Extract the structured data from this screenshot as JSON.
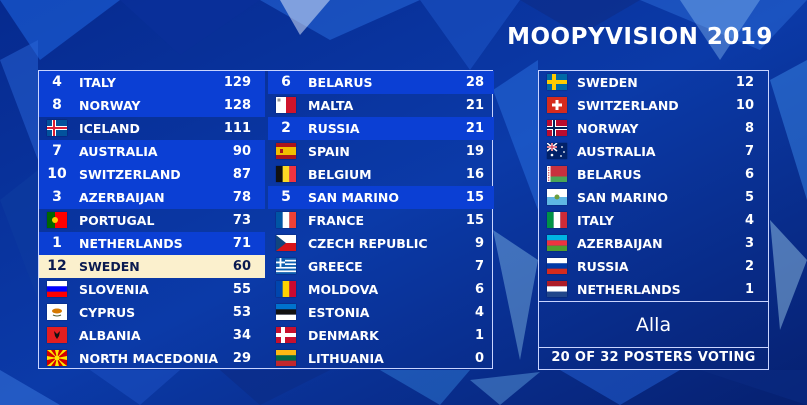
{
  "title": "MOOPYVISION 2019",
  "scoreboard": {
    "left": [
      {
        "country": "ITALY",
        "score": "129",
        "points": "4",
        "flag": "it"
      },
      {
        "country": "NORWAY",
        "score": "128",
        "points": "8",
        "flag": "no"
      },
      {
        "country": "ICELAND",
        "score": "111",
        "points": "",
        "flag": "is"
      },
      {
        "country": "AUSTRALIA",
        "score": "90",
        "points": "7",
        "flag": "au"
      },
      {
        "country": "SWITZERLAND",
        "score": "87",
        "points": "10",
        "flag": "ch"
      },
      {
        "country": "AZERBAIJAN",
        "score": "78",
        "points": "3",
        "flag": "az"
      },
      {
        "country": "PORTUGAL",
        "score": "73",
        "points": "",
        "flag": "pt"
      },
      {
        "country": "NETHERLANDS",
        "score": "71",
        "points": "1",
        "flag": "nl"
      },
      {
        "country": "SWEDEN",
        "score": "60",
        "points": "12",
        "flag": "se"
      },
      {
        "country": "SLOVENIA",
        "score": "55",
        "points": "",
        "flag": "si"
      },
      {
        "country": "CYPRUS",
        "score": "53",
        "points": "",
        "flag": "cy"
      },
      {
        "country": "ALBANIA",
        "score": "34",
        "points": "",
        "flag": "al"
      },
      {
        "country": "NORTH MACEDONIA",
        "score": "29",
        "points": "",
        "flag": "mk"
      }
    ],
    "right": [
      {
        "country": "BELARUS",
        "score": "28",
        "points": "6",
        "flag": "by"
      },
      {
        "country": "MALTA",
        "score": "21",
        "points": "",
        "flag": "mt"
      },
      {
        "country": "RUSSIA",
        "score": "21",
        "points": "2",
        "flag": "ru"
      },
      {
        "country": "SPAIN",
        "score": "19",
        "points": "",
        "flag": "es"
      },
      {
        "country": "BELGIUM",
        "score": "16",
        "points": "",
        "flag": "be"
      },
      {
        "country": "SAN MARINO",
        "score": "15",
        "points": "5",
        "flag": "sm"
      },
      {
        "country": "FRANCE",
        "score": "15",
        "points": "",
        "flag": "fr"
      },
      {
        "country": "CZECH REPUBLIC",
        "score": "9",
        "points": "",
        "flag": "cz"
      },
      {
        "country": "GREECE",
        "score": "7",
        "points": "",
        "flag": "gr"
      },
      {
        "country": "MOLDOVA",
        "score": "6",
        "points": "",
        "flag": "md"
      },
      {
        "country": "ESTONIA",
        "score": "4",
        "points": "",
        "flag": "ee"
      },
      {
        "country": "DENMARK",
        "score": "1",
        "points": "",
        "flag": "dk"
      },
      {
        "country": "LITHUANIA",
        "score": "0",
        "points": "",
        "flag": "lt"
      }
    ]
  },
  "jury": {
    "votes": [
      {
        "country": "SWEDEN",
        "points": "12",
        "flag": "se"
      },
      {
        "country": "SWITZERLAND",
        "points": "10",
        "flag": "ch"
      },
      {
        "country": "NORWAY",
        "points": "8",
        "flag": "no"
      },
      {
        "country": "AUSTRALIA",
        "points": "7",
        "flag": "au"
      },
      {
        "country": "BELARUS",
        "points": "6",
        "flag": "by"
      },
      {
        "country": "SAN MARINO",
        "points": "5",
        "flag": "sm"
      },
      {
        "country": "ITALY",
        "points": "4",
        "flag": "it"
      },
      {
        "country": "AZERBAIJAN",
        "points": "3",
        "flag": "az"
      },
      {
        "country": "RUSSIA",
        "points": "2",
        "flag": "ru"
      },
      {
        "country": "NETHERLANDS",
        "points": "1",
        "flag": "nl"
      }
    ],
    "voter": "Alla",
    "voting_status": "20 OF 32 POSTERS VOTING"
  },
  "colors": {
    "highlight_row": "#0b3fd4",
    "current_voter_row": "#fbf0cd",
    "border": "#c9d4ff",
    "background": "#0a2a8a"
  },
  "current_voter_country": "SWEDEN"
}
